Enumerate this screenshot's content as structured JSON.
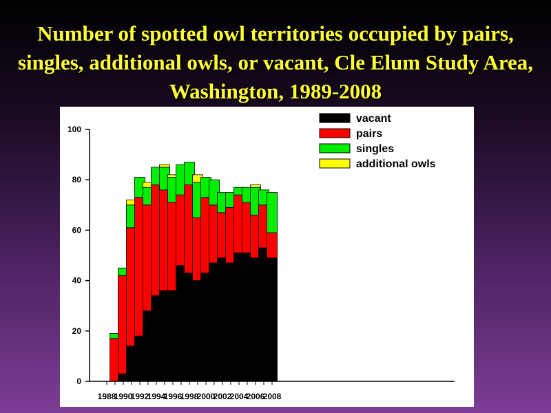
{
  "slide": {
    "title": "Number of spotted owl territories occupied by pairs, singles, additional owls, or vacant, Cle Elum Study Area, Washington, 1989-2008"
  },
  "colors": {
    "vacant": "#000000",
    "pairs": "#ff0000",
    "singles": "#00ee00",
    "additional owls": "#ffff00",
    "title": "#ffff33"
  },
  "chart_data": {
    "type": "bar",
    "stacked": true,
    "title": "",
    "xlabel": "",
    "ylabel": "",
    "ylim": [
      0,
      100
    ],
    "y_ticks": [
      0,
      20,
      40,
      60,
      80,
      100
    ],
    "x_tick_labels": [
      "1988",
      "1990",
      "1992",
      "1994",
      "1996",
      "1998",
      "2000",
      "2002",
      "2004",
      "2006",
      "2008"
    ],
    "categories": [
      1989,
      1990,
      1991,
      1992,
      1993,
      1994,
      1995,
      1996,
      1997,
      1998,
      1999,
      2000,
      2001,
      2002,
      2003,
      2004,
      2005,
      2006,
      2007,
      2008
    ],
    "legend_position": "top-right",
    "grid": false,
    "series": [
      {
        "name": "vacant",
        "values": [
          0,
          3,
          14,
          18,
          28,
          34,
          36,
          36,
          46,
          43,
          40,
          43,
          47,
          49,
          47,
          51,
          51,
          49,
          53,
          49
        ]
      },
      {
        "name": "pairs",
        "values": [
          17,
          39,
          47,
          55,
          42,
          44,
          40,
          35,
          28,
          35,
          25,
          30,
          23,
          18,
          22,
          23,
          20,
          17,
          17,
          10
        ]
      },
      {
        "name": "singles",
        "values": [
          2,
          3,
          9,
          8,
          7,
          7,
          9,
          10,
          12,
          9,
          14,
          8,
          10,
          8,
          6,
          3,
          6,
          11,
          6,
          16
        ]
      },
      {
        "name": "additional owls",
        "values": [
          0,
          0,
          2,
          0,
          2,
          0,
          1,
          1,
          0,
          0,
          3,
          0,
          0,
          0,
          0,
          0,
          0,
          1,
          0,
          0
        ]
      }
    ]
  }
}
